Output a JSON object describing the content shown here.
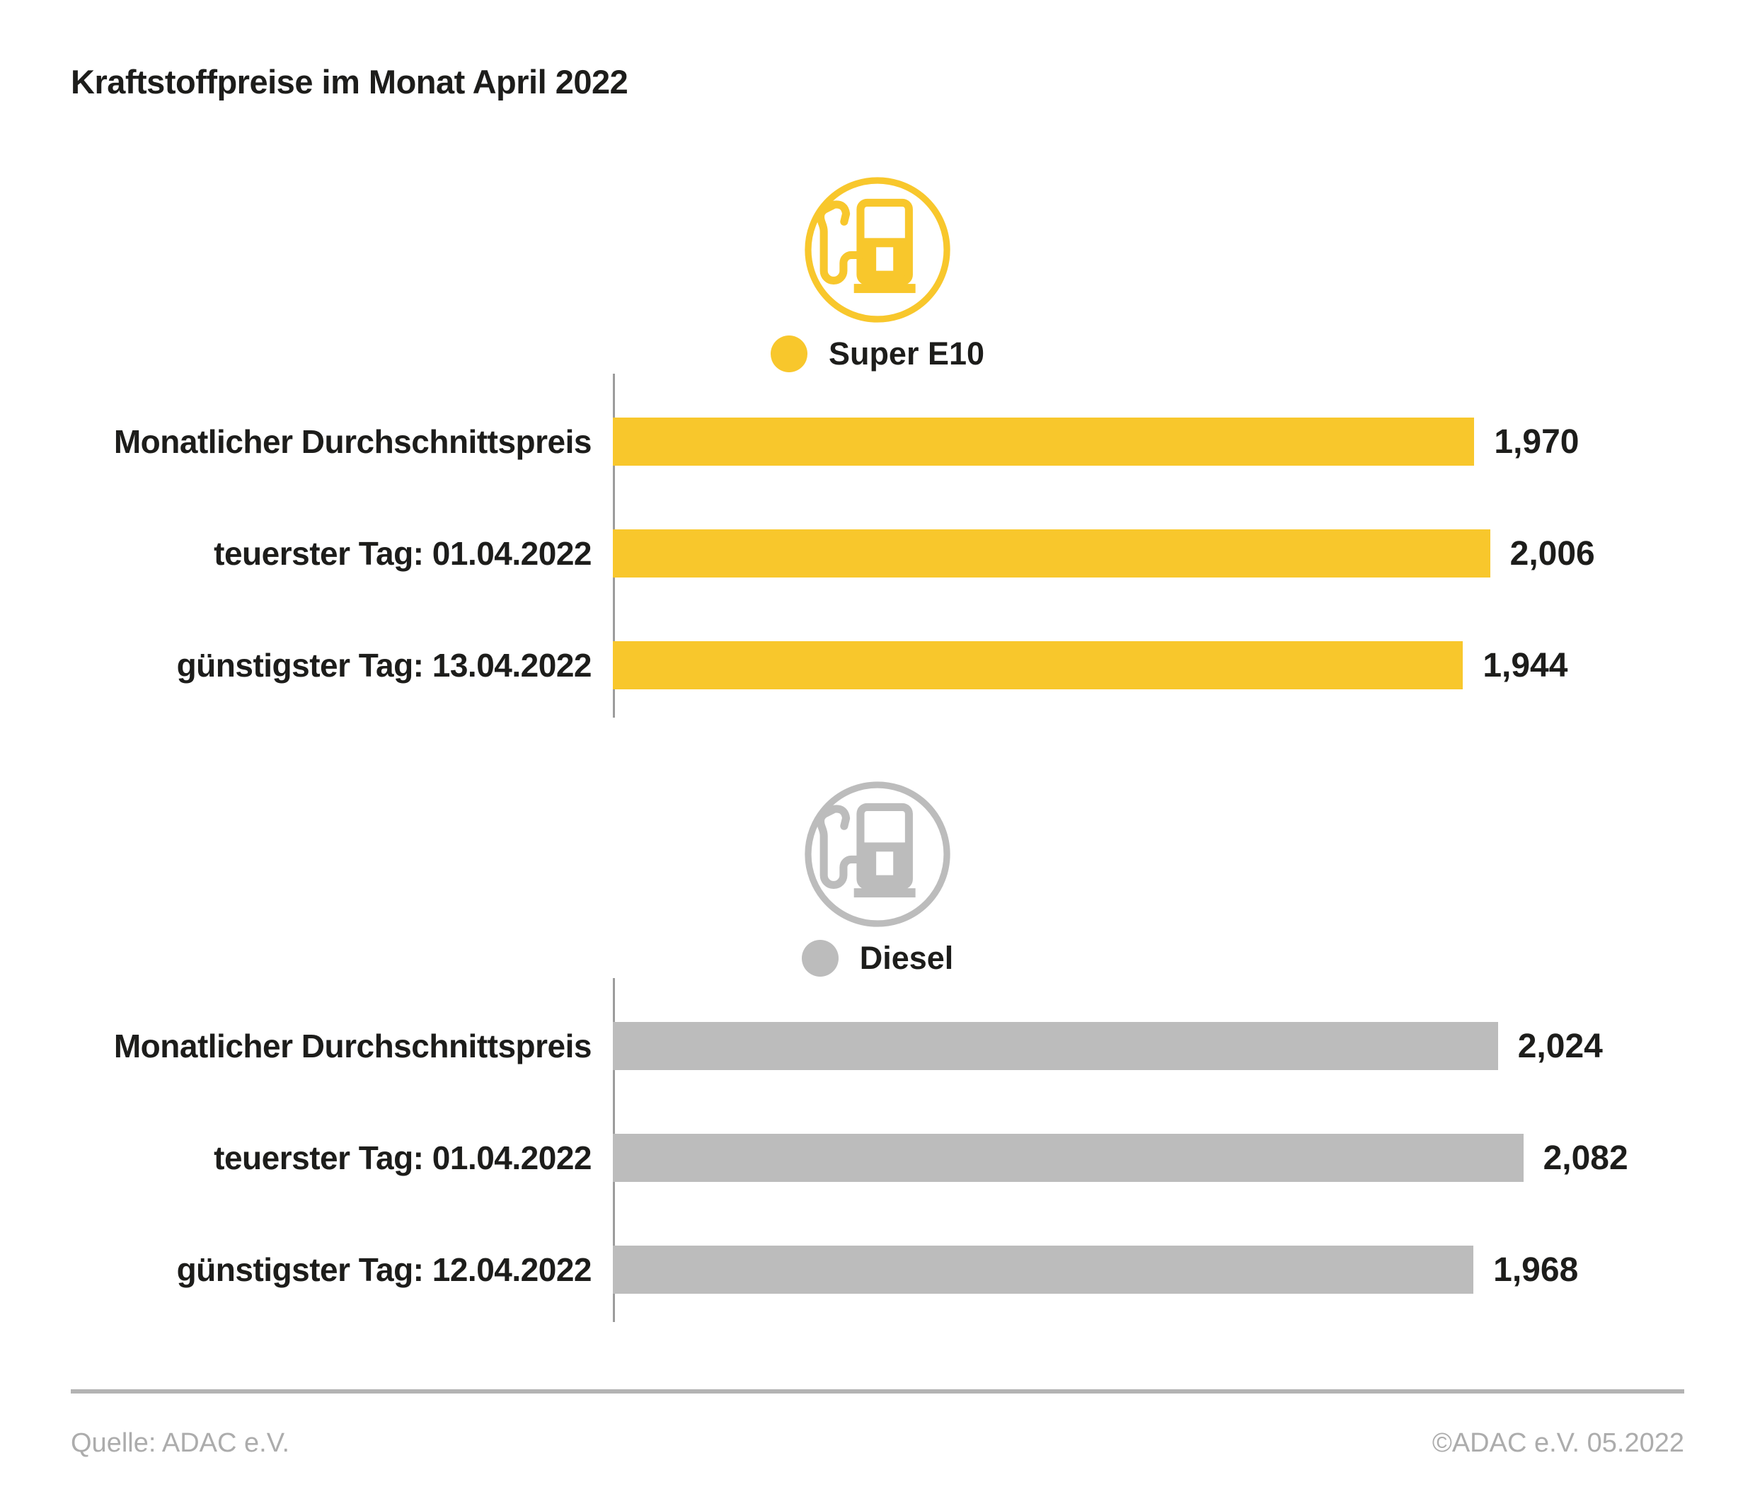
{
  "page": {
    "title": "Kraftstoffpreise im Monat April 2022",
    "footer": {
      "source": "Quelle: ADAC e.V.",
      "copyright": "©ADAC e.V. 05.2022"
    }
  },
  "colors": {
    "super_e10_yellow": "#F8C72C",
    "diesel_gray": "#BCBCBC",
    "text": "#1D1D1B",
    "axis_line": "#9C9C9C",
    "divider": "#B3B3B3",
    "footer_text": "#ACACAC"
  },
  "chart_data": [
    {
      "type": "bar",
      "orientation": "horizontal",
      "legend": "Super E10",
      "icon": "fuel-pump-icon",
      "color": "#F8C72C",
      "categories": [
        "Monatlicher Durchschnittspreis",
        "teuerster Tag: 01.04.2022",
        "günstigster Tag: 13.04.2022"
      ],
      "values": [
        1.97,
        2.006,
        1.944
      ],
      "value_labels": [
        "1,970",
        "2,006",
        "1,944"
      ],
      "xlim": [
        0,
        2.45
      ],
      "grid": false,
      "legend_position": "top-center"
    },
    {
      "type": "bar",
      "orientation": "horizontal",
      "legend": "Diesel",
      "icon": "fuel-pump-icon",
      "color": "#BCBCBC",
      "categories": [
        "Monatlicher Durchschnittspreis",
        "teuerster Tag: 01.04.2022",
        "günstigster Tag: 12.04.2022"
      ],
      "values": [
        2.024,
        2.082,
        1.968
      ],
      "value_labels": [
        "2,024",
        "2,082",
        "1,968"
      ],
      "xlim": [
        0,
        2.45
      ],
      "grid": false,
      "legend_position": "top-center"
    }
  ]
}
